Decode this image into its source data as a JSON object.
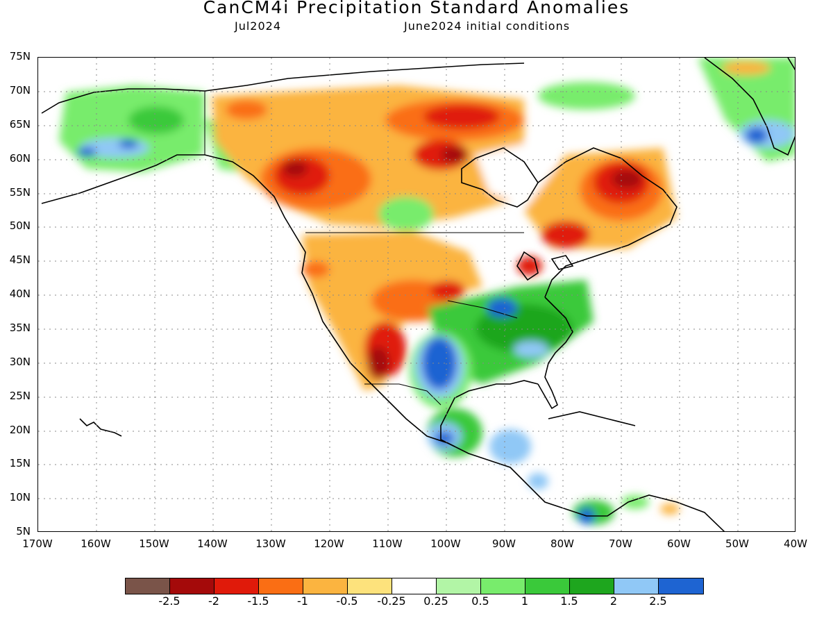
{
  "header": {
    "title": "CanCM4i Precipitation Standard Anomalies",
    "valid_month": "Jul2024",
    "init_conditions": "June2024 initial conditions"
  },
  "axes": {
    "y_labels": [
      "75N",
      "70N",
      "65N",
      "60N",
      "55N",
      "50N",
      "45N",
      "40N",
      "35N",
      "30N",
      "25N",
      "20N",
      "15N",
      "10N",
      "5N"
    ],
    "x_labels": [
      "170W",
      "160W",
      "150W",
      "140W",
      "130W",
      "120W",
      "110W",
      "100W",
      "90W",
      "80W",
      "70W",
      "60W",
      "50W",
      "40W"
    ]
  },
  "map": {
    "region": "North America",
    "lat_range": [
      5,
      75
    ],
    "lon_range": [
      -170,
      -40
    ],
    "grid": "dotted"
  },
  "colorbar": {
    "colors": [
      "#7a5449",
      "#a40a0a",
      "#e01a0a",
      "#fa6e14",
      "#fbb440",
      "#fde27c",
      "#ffffff",
      "#b2f5a6",
      "#78ec6c",
      "#3ac93a",
      "#1ea61e",
      "#90c8f6",
      "#1e64d2"
    ],
    "labels": [
      "-2.5",
      "-2",
      "-1.5",
      "-1",
      "-0.5",
      "-0.25",
      "0.25",
      "0.5",
      "1",
      "1.5",
      "2",
      "2.5"
    ]
  }
}
